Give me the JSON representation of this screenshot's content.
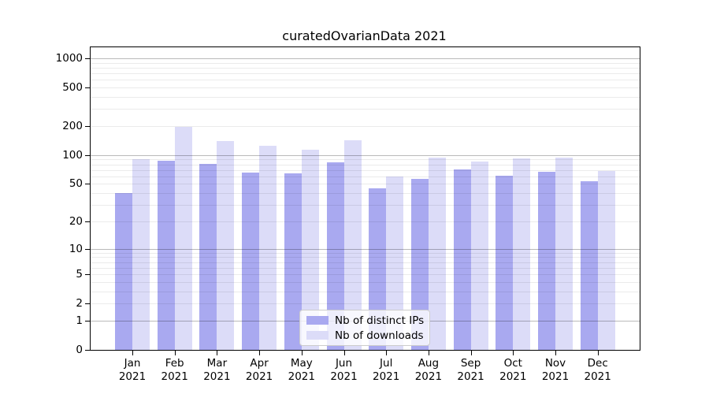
{
  "figure": {
    "background": "#ffffff"
  },
  "chart_data": {
    "type": "bar",
    "title": "curatedOvarianData 2021",
    "months": [
      "Jan",
      "Feb",
      "Mar",
      "Apr",
      "May",
      "Jun",
      "Jul",
      "Aug",
      "Sep",
      "Oct",
      "Nov",
      "Dec"
    ],
    "year_label": "2021",
    "series": [
      {
        "name": "Nb of distinct IPs",
        "color": "#a9a9f0",
        "values": [
          40,
          88,
          81,
          66,
          65,
          84,
          45,
          57,
          71,
          61,
          67,
          53
        ]
      },
      {
        "name": "Nb of downloads",
        "color": "#dcdcf8",
        "values": [
          90,
          197,
          140,
          125,
          113,
          143,
          60,
          94,
          85,
          93,
          94,
          68
        ]
      }
    ],
    "yscale": "log1p",
    "yticks": [
      0,
      1,
      2,
      5,
      10,
      20,
      50,
      100,
      200,
      500,
      1000
    ],
    "major_gridline_ticks": [
      1,
      10,
      100,
      1000
    ],
    "minor_gridline_values": [
      3,
      4,
      6,
      7,
      8,
      9,
      30,
      40,
      60,
      70,
      80,
      90,
      300,
      400,
      600,
      700,
      800,
      900
    ],
    "ylim": [
      0,
      1300
    ],
    "grid": true,
    "legend": {
      "position": "inside-bottom-center",
      "entries": [
        "Nb of distinct IPs",
        "Nb of downloads"
      ]
    },
    "colors": {
      "distinct_ips_bar": "#a9a9f0",
      "downloads_bar": "#dcdcf8",
      "axis": "#000000",
      "major_grid": "rgba(0,0,0,0.27)",
      "minor_grid": "rgba(0,0,0,0.08)"
    }
  }
}
